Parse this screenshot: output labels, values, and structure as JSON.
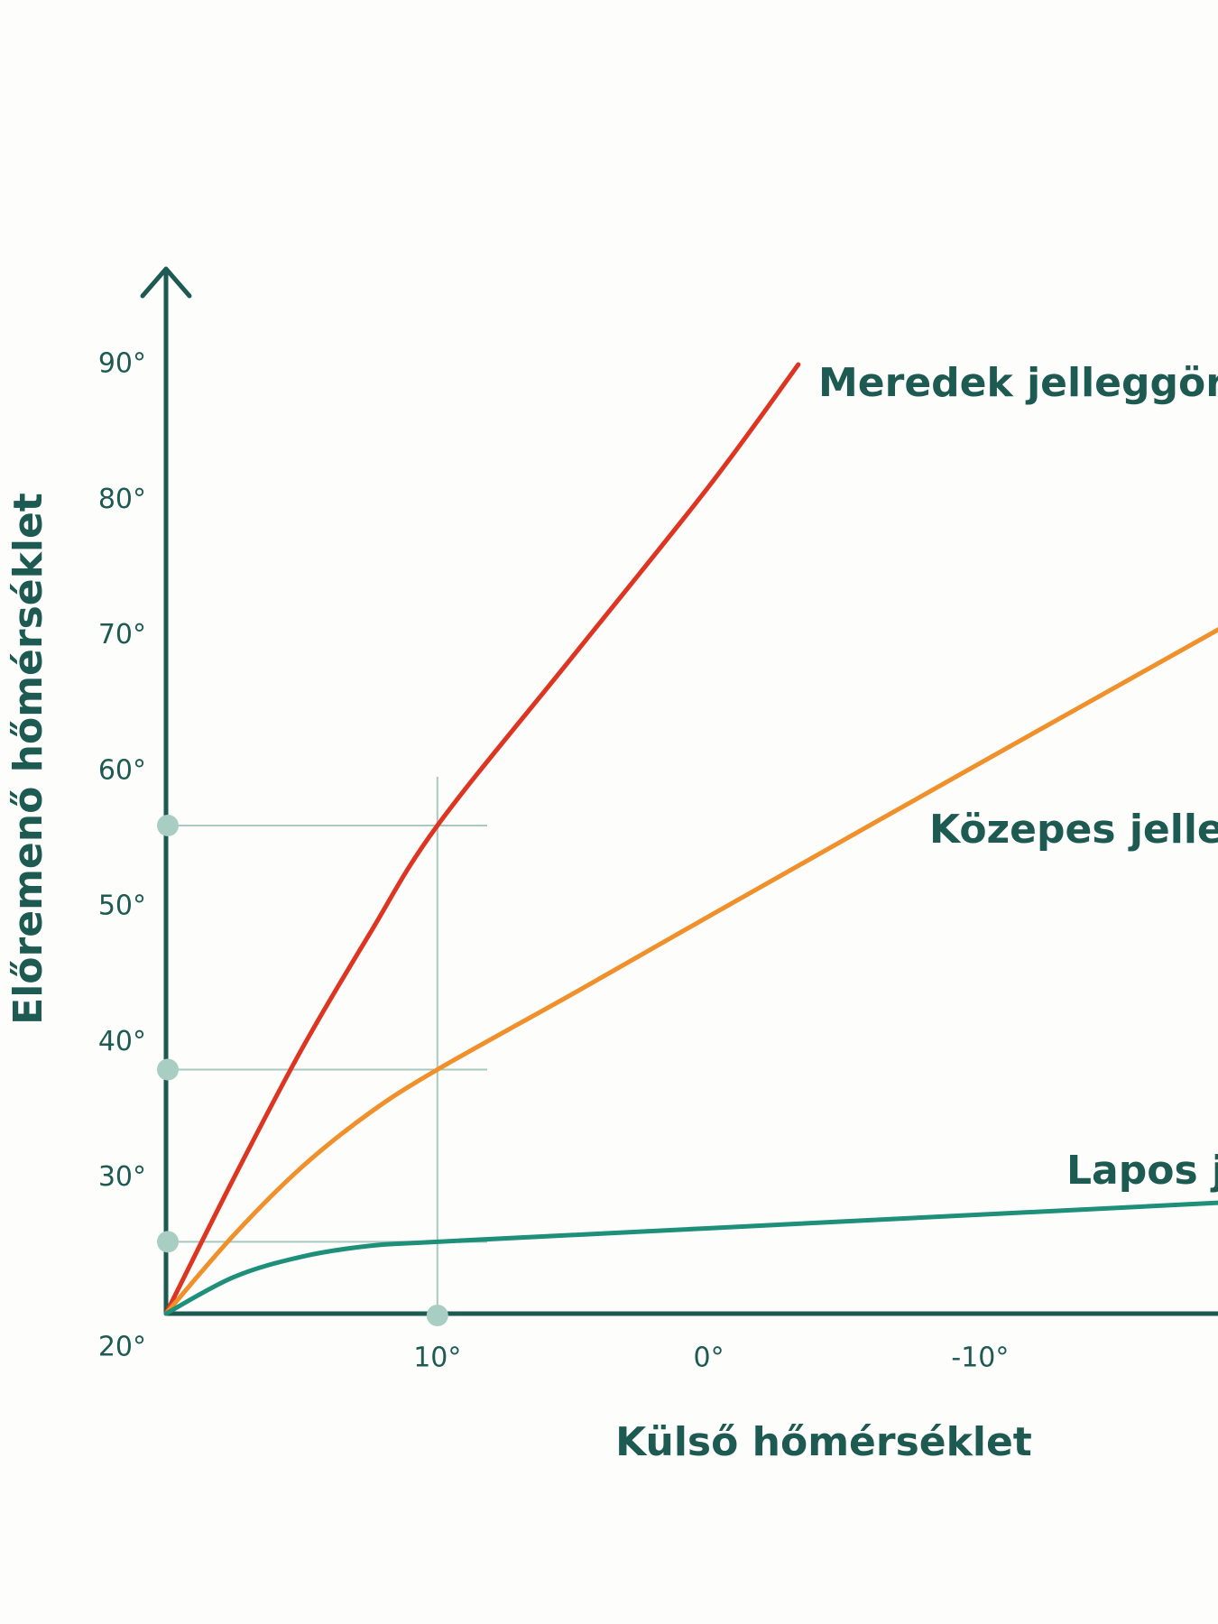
{
  "chart_data": {
    "type": "line",
    "x_label": "Külső hőmérséklet",
    "y_label": "Előremenő hőmérséklet",
    "xlim": [
      20,
      -20
    ],
    "ylim": [
      20,
      90
    ],
    "xticks": [
      {
        "value": 10,
        "label": "10°"
      },
      {
        "value": 0,
        "label": "0°"
      },
      {
        "value": -10,
        "label": "-10°"
      }
    ],
    "yticks": [
      {
        "value": 20,
        "label": "20°"
      },
      {
        "value": 30,
        "label": "30°"
      },
      {
        "value": 40,
        "label": "40°"
      },
      {
        "value": 50,
        "label": "50°"
      },
      {
        "value": 60,
        "label": "60°"
      },
      {
        "value": 70,
        "label": "70°"
      },
      {
        "value": 80,
        "label": "80°"
      },
      {
        "value": 90,
        "label": "90°"
      }
    ],
    "guide_x": 10,
    "series": [
      {
        "name": "Meredek jelleggörbe",
        "color": "#dd3522",
        "x": [
          20,
          17.5,
          15,
          12.5,
          10,
          5,
          0,
          -3.3
        ],
        "values": [
          20,
          30,
          39.5,
          48,
          56,
          68.5,
          81,
          90
        ]
      },
      {
        "name": "Közepes jelleggörbe",
        "color": "#f0902a",
        "x": [
          20,
          17.5,
          15,
          12.5,
          10,
          5,
          0,
          -10,
          -19
        ],
        "values": [
          20,
          25.8,
          30.8,
          34.8,
          38,
          43.6,
          49.3,
          60.6,
          70.7
        ]
      },
      {
        "name": "Lapos jelleggörbe",
        "color": "#1e8f78",
        "x": [
          20,
          17.5,
          15,
          12.5,
          10,
          0,
          -10,
          -19
        ],
        "values": [
          20,
          22.7,
          24.2,
          25,
          25.3,
          26.3,
          27.3,
          28.2
        ]
      }
    ]
  }
}
